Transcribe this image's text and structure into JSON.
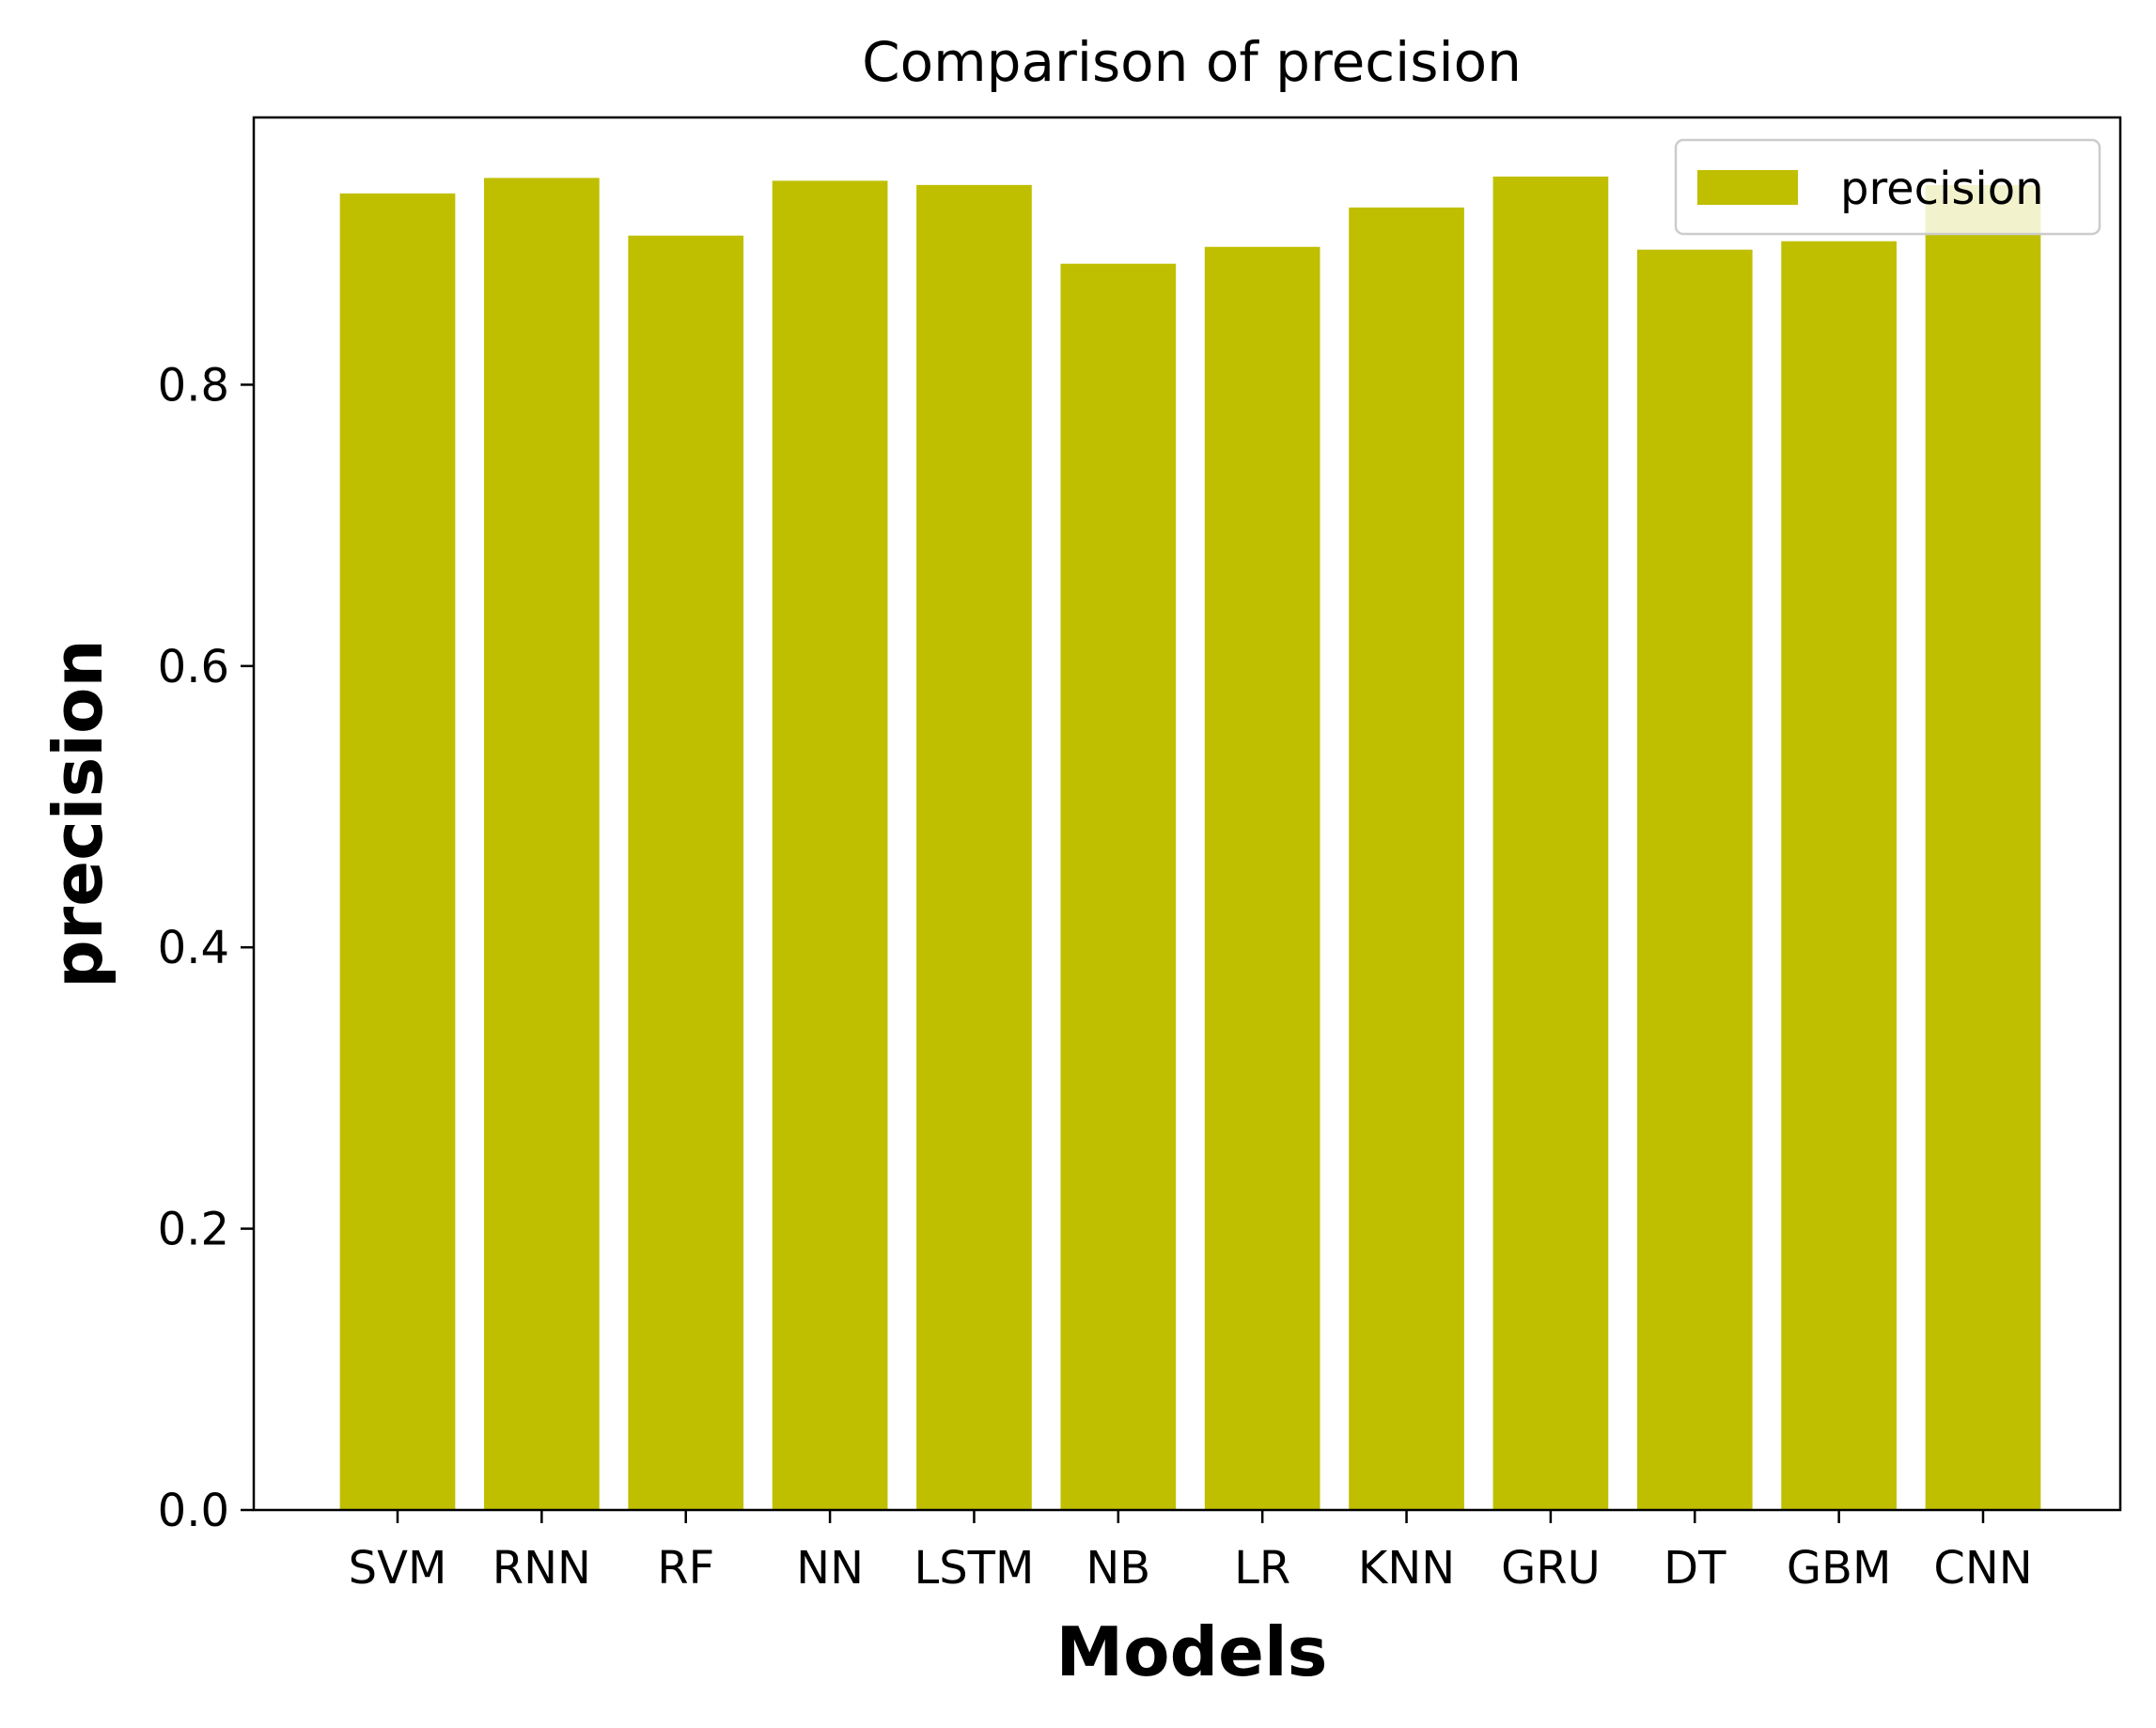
{
  "chart_data": {
    "type": "bar",
    "title": "Comparison of precision",
    "xlabel": "Models",
    "ylabel": "precision",
    "categories": [
      "SVM",
      "RNN",
      "RF",
      "NN",
      "LSTM",
      "NB",
      "LR",
      "KNN",
      "GRU",
      "DT",
      "GBM",
      "CNN"
    ],
    "series": [
      {
        "name": "precision",
        "color": "#bfbf00",
        "values": [
          0.936,
          0.947,
          0.906,
          0.945,
          0.942,
          0.886,
          0.898,
          0.926,
          0.948,
          0.896,
          0.902,
          0.942
        ]
      }
    ],
    "ylim": [
      0,
      0.99
    ],
    "yticks": [
      "0.0",
      "0.2",
      "0.4",
      "0.6",
      "0.8"
    ],
    "grid": false,
    "legend": "upper right"
  }
}
